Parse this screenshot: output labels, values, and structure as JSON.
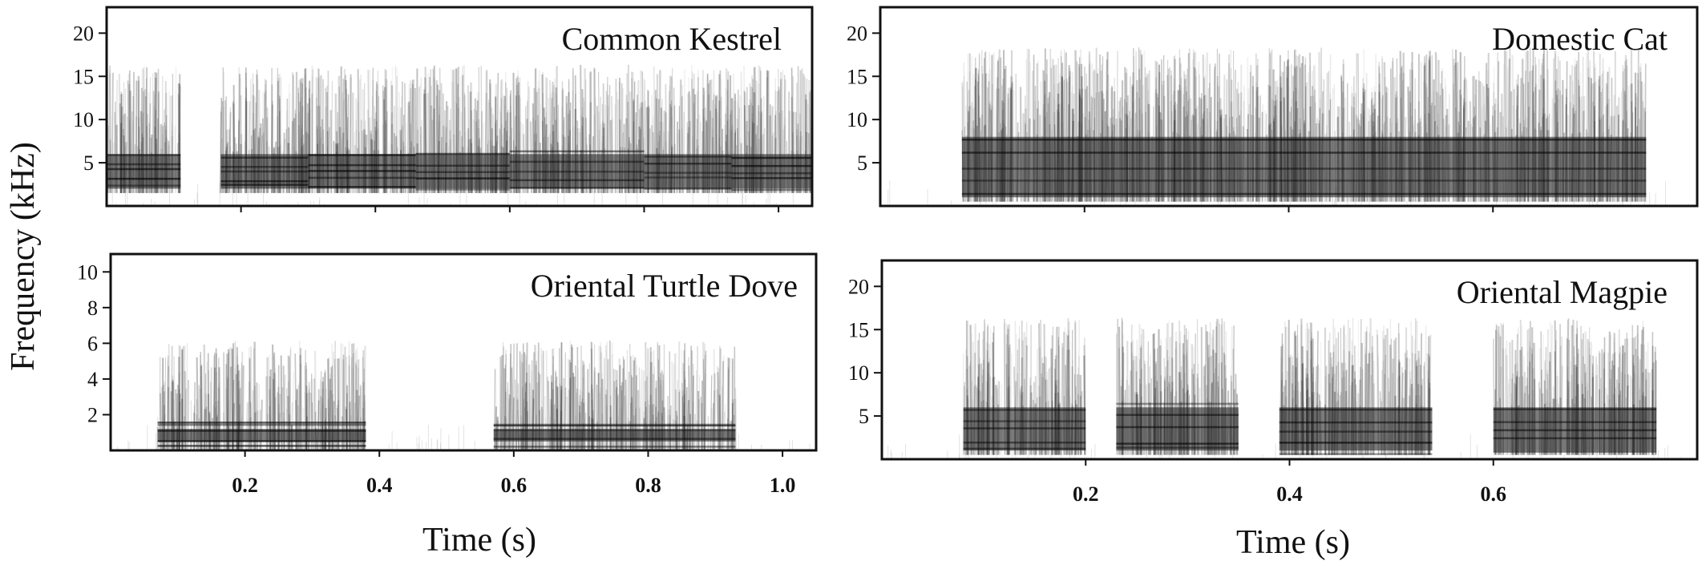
{
  "figure": {
    "ylabel": "Frequency (kHz)"
  },
  "chart_data": [
    {
      "type": "heatmap",
      "title": "Common Kestrel",
      "xlabel": "",
      "ylabel": "Frequency (kHz)",
      "xlim": [
        0,
        1.05
      ],
      "ylim": [
        0,
        23
      ],
      "yticks": [
        5,
        10,
        15,
        20
      ],
      "xticks": [
        0.2,
        0.4,
        0.6,
        0.8,
        1.0
      ],
      "xtick_labels_shown": false,
      "calls": [
        {
          "t0": 0.0,
          "t1": 0.11
        },
        {
          "t0": 0.17,
          "t1": 0.3
        },
        {
          "t0": 0.3,
          "t1": 0.46
        },
        {
          "t0": 0.46,
          "t1": 0.6
        },
        {
          "t0": 0.6,
          "t1": 0.8
        },
        {
          "t0": 0.8,
          "t1": 0.93
        },
        {
          "t0": 0.93,
          "t1": 1.05
        }
      ],
      "dominant_band_khz": [
        2,
        6
      ],
      "color": "#000000"
    },
    {
      "type": "heatmap",
      "title": "Domestic Cat",
      "xlabel": "Time (s)",
      "ylabel": "",
      "xlim": [
        0,
        0.8
      ],
      "ylim": [
        0,
        23
      ],
      "yticks": [
        5,
        10,
        15,
        20
      ],
      "xticks": [
        0.2,
        0.4,
        0.6
      ],
      "xtick_labels_shown": false,
      "calls": [
        {
          "t0": 0.08,
          "t1": 0.75
        }
      ],
      "dominant_band_khz": [
        1,
        8
      ],
      "color": "#000000"
    },
    {
      "type": "heatmap",
      "title": "Oriental Turtle Dove",
      "xlabel": "Time (s)",
      "ylabel": "",
      "xlim": [
        0,
        1.05
      ],
      "ylim": [
        0,
        11
      ],
      "yticks": [
        2,
        4,
        6,
        8,
        10
      ],
      "xticks": [
        0.2,
        0.4,
        0.6,
        0.8,
        1.0
      ],
      "xtick_labels": [
        "0.2",
        "0.4",
        "0.6",
        "0.8",
        "1.0"
      ],
      "calls": [
        {
          "t0": 0.07,
          "t1": 0.38
        },
        {
          "t0": 0.57,
          "t1": 0.93
        }
      ],
      "dominant_band_khz": [
        0.5,
        1.2
      ],
      "color": "#000000"
    },
    {
      "type": "heatmap",
      "title": "Oriental Magpie",
      "xlabel": "Time (s)",
      "ylabel": "",
      "xlim": [
        0,
        0.8
      ],
      "ylim": [
        0,
        23
      ],
      "yticks": [
        5,
        10,
        15,
        20
      ],
      "xticks": [
        0.2,
        0.4,
        0.6
      ],
      "xtick_labels": [
        "0.2",
        "0.4",
        "0.6"
      ],
      "calls": [
        {
          "t0": 0.08,
          "t1": 0.2
        },
        {
          "t0": 0.23,
          "t1": 0.35
        },
        {
          "t0": 0.39,
          "t1": 0.54
        },
        {
          "t0": 0.6,
          "t1": 0.76
        }
      ],
      "dominant_band_khz": [
        1,
        6
      ],
      "color": "#000000"
    }
  ],
  "bottom_labels": {
    "left": "Time (s)",
    "right": "Time (s)"
  }
}
